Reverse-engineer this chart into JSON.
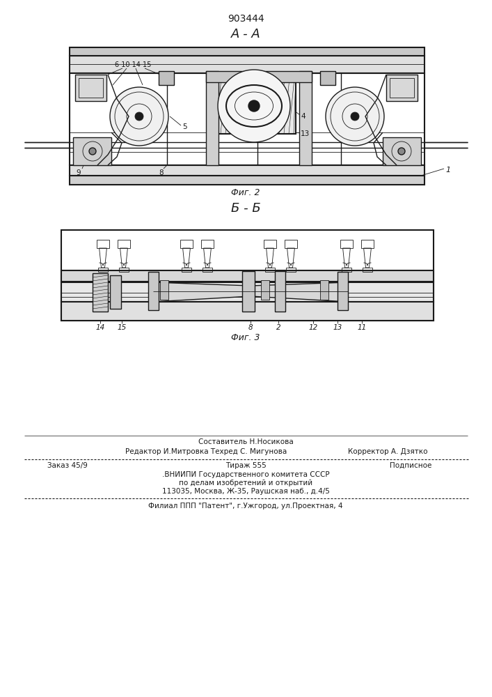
{
  "patent_number": "903444",
  "section_label_1": "А - А",
  "section_label_2": "Б - Б",
  "fig2_label": "Фиг. 2",
  "fig3_label": "Фиг. 3",
  "footer_line1": "Составитель Н.Носикова",
  "footer_line2_left": "Редактор И.Митровка Техред С. Мигунова",
  "footer_line2_right": "Корректор А. Дзятко",
  "footer_line3_left": "Заказ 45/9",
  "footer_line3_mid": "Тираж 555",
  "footer_line3_right": "Подписное",
  "footer_line4": ".ВНИИПИ Государственного комитета СССР",
  "footer_line5": "по делам изобретений и открытий",
  "footer_line6": "113035, Москва, Ж-35, Раушская наб., д.4/5",
  "footer_line7": "Филиал ППП \"Патент\", г.Ужгород, ул.Проектная, 4",
  "bg_color": "#ffffff",
  "line_color": "#1a1a1a"
}
